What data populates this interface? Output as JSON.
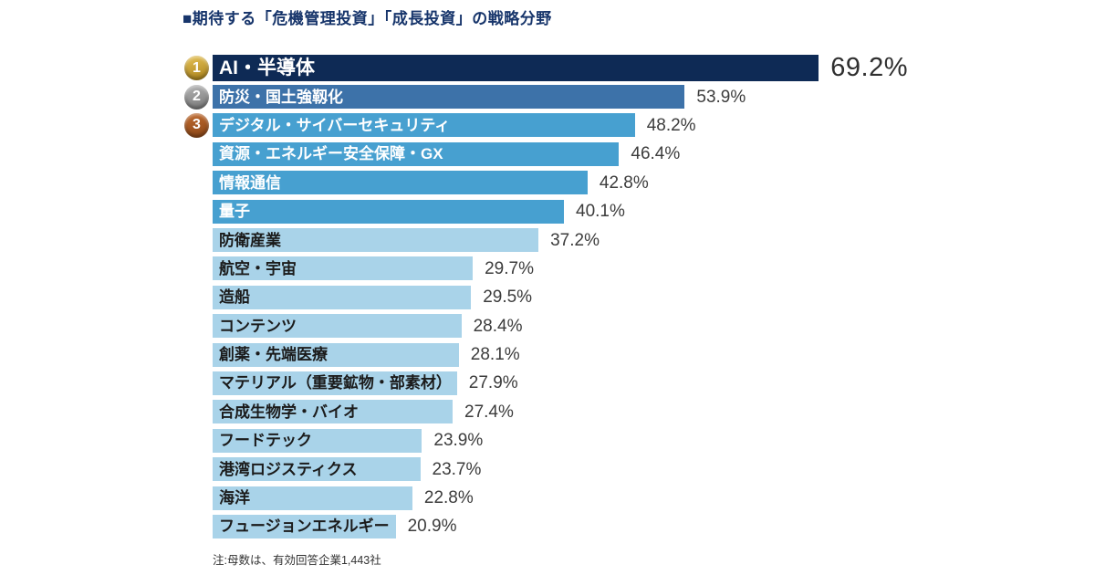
{
  "page": {
    "title": "■期待する「危機管理投資」「成長投資」の戦略分野",
    "note": "注:母数は、有効回答企業1,443社"
  },
  "colors": {
    "title_text": "#17356b",
    "note_text": "#333333",
    "percent_text": "#3c3c3c",
    "percent_text_top": "#2f2f2f",
    "bar_text_light": "#ffffff",
    "bar_text_dark": "#1b1b1b",
    "tier_rank1": "#0e2a55",
    "tier_rank2": "#3d72a9",
    "tier_mid": "#47a0d0",
    "tier_pale": "#a9d3e9",
    "badge_gold_from": "#e6c257",
    "badge_gold_to": "#a9811a",
    "badge_silver_from": "#b5b5b5",
    "badge_silver_to": "#767676",
    "badge_bronze_from": "#c16c30",
    "badge_bronze_to": "#8a4516"
  },
  "chart_data": {
    "type": "bar",
    "orientation": "horizontal",
    "title": "期待する「危機管理投資」「成長投資」の戦略分野",
    "xlabel": "",
    "ylabel": "",
    "unit": "%",
    "xlim": [
      0,
      70
    ],
    "grid": false,
    "legend": "none",
    "categories": [
      "AI・半導体",
      "防災・国土強靱化",
      "デジタル・サイバーセキュリティ",
      "資源・エネルギー安全保障・GX",
      "情報通信",
      "量子",
      "防衛産業",
      "航空・宇宙",
      "造船",
      "コンテンツ",
      "創薬・先端医療",
      "マテリアル（重要鉱物・部素材）",
      "合成生物学・バイオ",
      "フードテック",
      "港湾ロジスティクス",
      "海洋",
      "フュージョンエネルギー"
    ],
    "values": [
      69.2,
      53.9,
      48.2,
      46.4,
      42.8,
      40.1,
      37.2,
      29.7,
      29.5,
      28.4,
      28.1,
      27.9,
      27.4,
      23.9,
      23.7,
      22.8,
      20.9
    ],
    "value_labels": [
      "69.2%",
      "53.9%",
      "48.2%",
      "46.4%",
      "42.8%",
      "40.1%",
      "37.2%",
      "29.7%",
      "29.5%",
      "28.4%",
      "28.1%",
      "27.9%",
      "27.4%",
      "23.9%",
      "23.7%",
      "22.8%",
      "20.9%"
    ],
    "ranks": [
      "1",
      "2",
      "3",
      null,
      null,
      null,
      null,
      null,
      null,
      null,
      null,
      null,
      null,
      null,
      null,
      null,
      null
    ],
    "rank_badge_styles": [
      "gold",
      "silver",
      "bronze"
    ],
    "bar_tiers": [
      "rank1",
      "rank2",
      "mid",
      "mid",
      "mid",
      "mid",
      "pale",
      "pale",
      "pale",
      "pale",
      "pale",
      "pale",
      "pale",
      "pale",
      "pale",
      "pale",
      "pale"
    ]
  }
}
